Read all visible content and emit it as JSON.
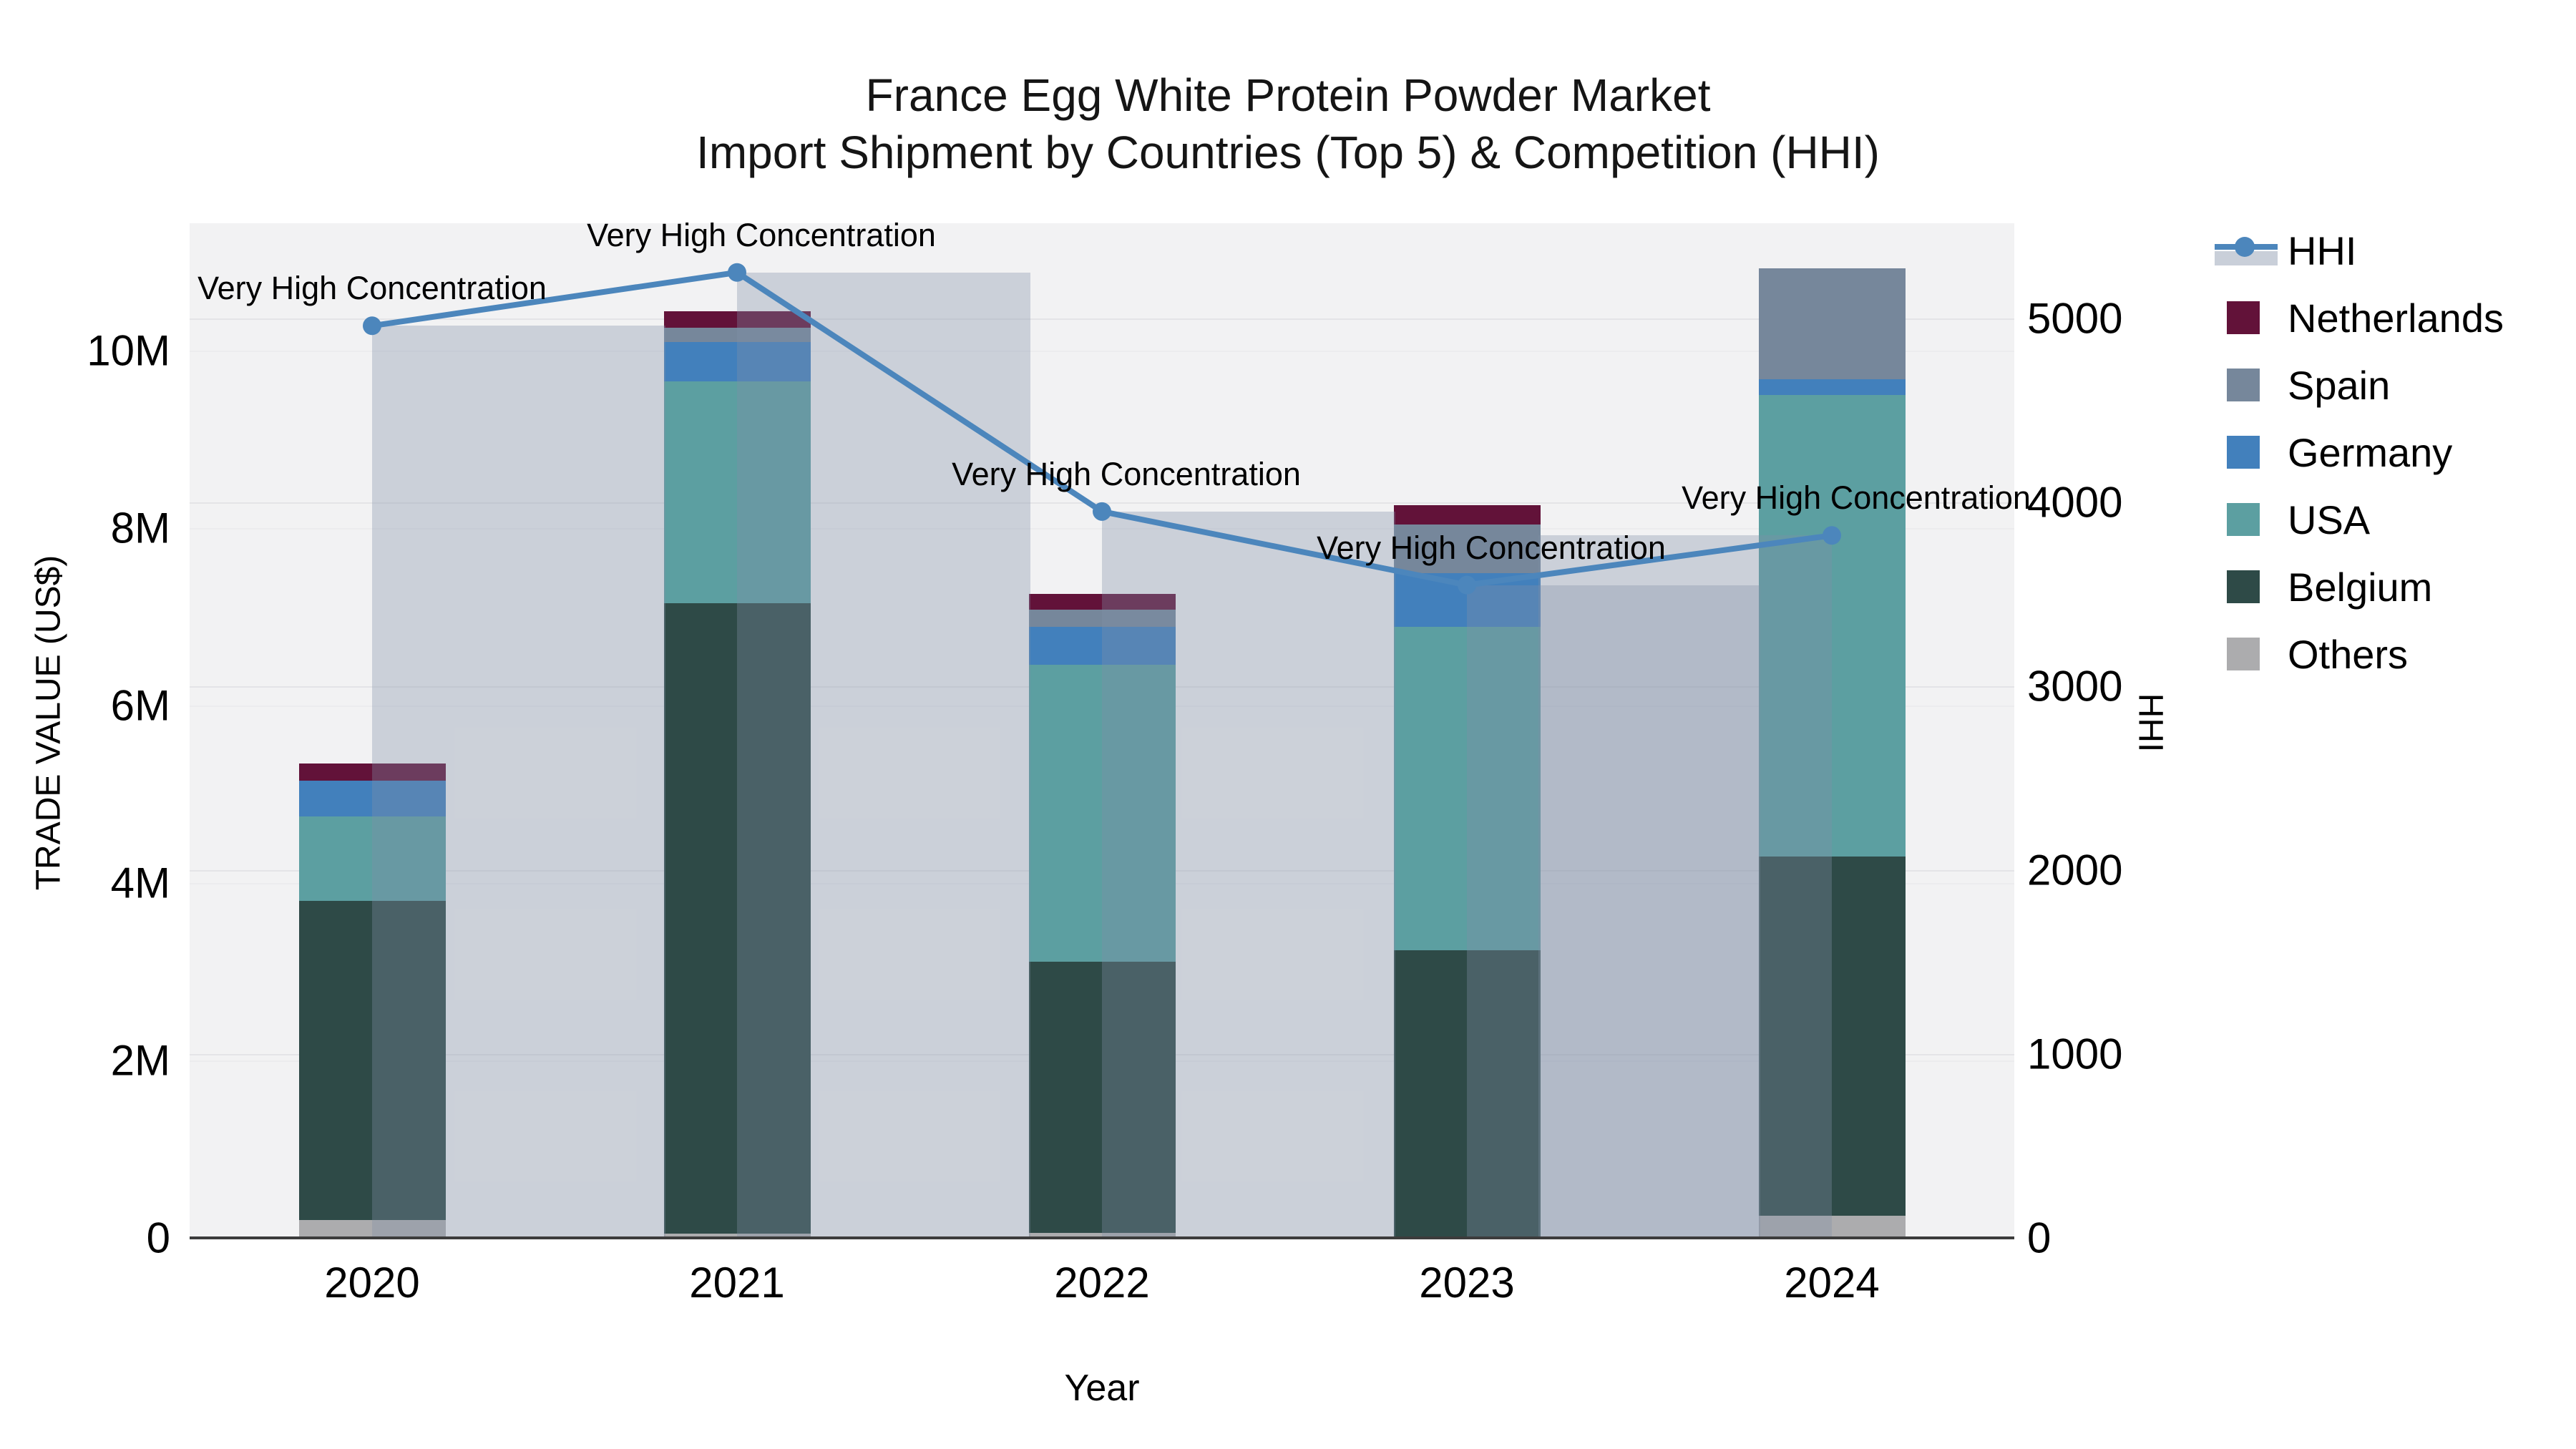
{
  "title": {
    "line1": "France Egg White Protein Powder Market",
    "line2": "Import Shipment by Countries (Top 5) & Competition (HHI)"
  },
  "axes": {
    "x": {
      "title": "Year",
      "ticks": [
        "2020",
        "2021",
        "2022",
        "2023",
        "2024"
      ]
    },
    "y_left": {
      "title": "TRADE VALUE (US$)",
      "ticks": [
        "0",
        "2M",
        "4M",
        "6M",
        "8M",
        "10M"
      ],
      "tick_values_millions": [
        0,
        2,
        4,
        6,
        8,
        10
      ]
    },
    "y_right": {
      "title": "HHI",
      "ticks": [
        "0",
        "1000",
        "2000",
        "3000",
        "4000",
        "5000"
      ],
      "tick_values": [
        0,
        1000,
        2000,
        3000,
        4000,
        5000
      ]
    }
  },
  "legend": {
    "position": "right",
    "items": [
      {
        "label": "HHI",
        "type": "line",
        "color": "#4c86bc"
      },
      {
        "label": "Netherlands",
        "type": "swatch",
        "color": "#621239"
      },
      {
        "label": "Spain",
        "type": "swatch",
        "color": "#76879b"
      },
      {
        "label": "Germany",
        "type": "swatch",
        "color": "#4280bc"
      },
      {
        "label": "USA",
        "type": "swatch",
        "color": "#5c9fa1"
      },
      {
        "label": "Belgium",
        "type": "swatch",
        "color": "#2e4a47"
      },
      {
        "label": "Others",
        "type": "swatch",
        "color": "#acacae"
      }
    ]
  },
  "colors": {
    "figure_background": "#ffffff",
    "plot_background": "#f2f2f3",
    "gridline": "#e4e4e7",
    "axis_line": "#3c3c3c",
    "hhi_line": "#4c86bc",
    "hhi_bar_overlay": "rgba(130,145,167,0.34)"
  },
  "chart_data": {
    "type": "bar",
    "subtype": "stacked-bars-with-overlay-line",
    "categories": [
      "2020",
      "2021",
      "2022",
      "2023",
      "2024"
    ],
    "stack_order_bottom_to_top": [
      "Others",
      "Belgium",
      "USA",
      "Germany",
      "Spain",
      "Netherlands"
    ],
    "series": [
      {
        "name": "Others",
        "axis": "left",
        "values_millions": [
          0.2,
          0.05,
          0.06,
          0.02,
          0.25
        ],
        "color": "#acacae"
      },
      {
        "name": "Belgium",
        "axis": "left",
        "values_millions": [
          3.6,
          7.1,
          3.05,
          3.22,
          4.05
        ],
        "color": "#2e4a47"
      },
      {
        "name": "USA",
        "axis": "left",
        "values_millions": [
          0.95,
          2.5,
          3.35,
          3.65,
          5.2
        ],
        "color": "#5c9fa1"
      },
      {
        "name": "Germany",
        "axis": "left",
        "values_millions": [
          0.4,
          0.45,
          0.43,
          0.6,
          0.18
        ],
        "color": "#4280bc"
      },
      {
        "name": "Spain",
        "axis": "left",
        "values_millions": [
          0.0,
          0.16,
          0.19,
          0.55,
          1.25
        ],
        "color": "#76879b"
      },
      {
        "name": "Netherlands",
        "axis": "left",
        "values_millions": [
          0.2,
          0.18,
          0.18,
          0.22,
          0.0
        ],
        "color": "#621239"
      }
    ],
    "totals_millions": [
      5.35,
      10.44,
      7.26,
      8.26,
      10.93
    ],
    "hhi": {
      "name": "HHI",
      "axis": "right",
      "values": [
        4960,
        5250,
        3950,
        3550,
        3820
      ],
      "line_color": "#4c86bc",
      "bar_overlay": true
    },
    "annotations": [
      {
        "text": "Very High Concentration",
        "category": "2020"
      },
      {
        "text": "Very High Concentration",
        "category": "2021"
      },
      {
        "text": "Very High Concentration",
        "category": "2022"
      },
      {
        "text": "Very High Concentration",
        "category": "2023"
      },
      {
        "text": "Very High Concentration",
        "category": "2024"
      }
    ],
    "xlabel": "Year",
    "ylabel_left": "TRADE VALUE (US$)",
    "ylabel_right": "HHI",
    "ylim_left_millions": [
      0,
      11.4
    ],
    "ylim_right": [
      0,
      5520
    ],
    "grid": true,
    "legend_position": "right"
  }
}
